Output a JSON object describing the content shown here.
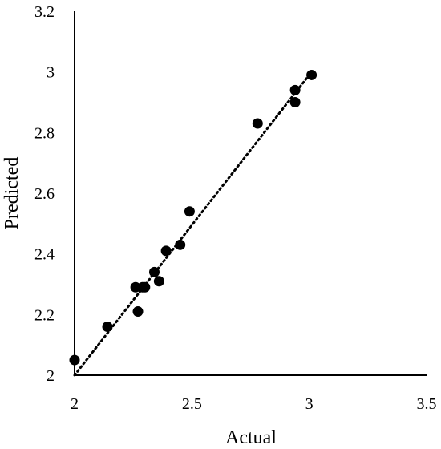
{
  "chart_data": {
    "type": "scatter",
    "title": "",
    "xlabel": "Actual",
    "ylabel": "Predicted",
    "xlim": [
      2,
      3.5
    ],
    "ylim": [
      2,
      3.2
    ],
    "x_ticks": [
      "2",
      "2.5",
      "3",
      "3.5"
    ],
    "y_ticks": [
      "2",
      "2.2",
      "2.4",
      "2.6",
      "2.8",
      "3",
      "3.2"
    ],
    "grid": false,
    "trendline": {
      "style": "dotted",
      "x": [
        2.0,
        3.0
      ],
      "y": [
        2.0,
        2.99
      ]
    },
    "series": [
      {
        "x": [
          2.0,
          2.14,
          2.26,
          2.27,
          2.29,
          2.3,
          2.34,
          2.36,
          2.39,
          2.45,
          2.49,
          2.78,
          2.94,
          2.94,
          3.01
        ],
        "y": [
          2.05,
          2.16,
          2.29,
          2.21,
          2.29,
          2.29,
          2.34,
          2.31,
          2.41,
          2.43,
          2.54,
          2.83,
          2.9,
          2.94,
          2.99
        ]
      }
    ]
  }
}
